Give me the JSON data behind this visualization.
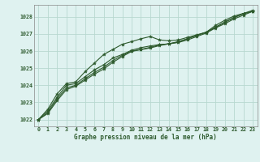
{
  "title": "Graphe pression niveau de la mer (hPa)",
  "background_color": "#dff2f0",
  "plot_bg_color": "#dff2f0",
  "grid_color": "#b8d8d0",
  "line_color": "#2d5a2d",
  "border_color": "#888888",
  "text_color": "#2d5a2d",
  "xlim": [
    -0.5,
    23.5
  ],
  "ylim": [
    1021.6,
    1028.7
  ],
  "yticks": [
    1022,
    1023,
    1024,
    1025,
    1026,
    1027,
    1028
  ],
  "xticks": [
    0,
    1,
    2,
    3,
    4,
    5,
    6,
    7,
    8,
    9,
    10,
    11,
    12,
    13,
    14,
    15,
    16,
    17,
    18,
    19,
    20,
    21,
    22,
    23
  ],
  "series": [
    [
      1022.0,
      1022.6,
      1023.5,
      1024.1,
      1024.2,
      1024.8,
      1025.3,
      1025.8,
      1026.1,
      1026.4,
      1026.55,
      1026.72,
      1026.85,
      1026.65,
      1026.6,
      1026.65,
      1026.8,
      1026.95,
      1027.1,
      1027.5,
      1027.8,
      1028.05,
      1028.2,
      1028.38
    ],
    [
      1022.0,
      1022.5,
      1023.3,
      1024.0,
      1024.1,
      1024.5,
      1024.9,
      1025.2,
      1025.6,
      1025.8,
      1026.05,
      1026.2,
      1026.3,
      1026.38,
      1026.42,
      1026.5,
      1026.65,
      1026.85,
      1027.05,
      1027.35,
      1027.6,
      1027.88,
      1028.1,
      1028.32
    ],
    [
      1022.0,
      1022.4,
      1023.2,
      1023.85,
      1024.0,
      1024.38,
      1024.75,
      1025.05,
      1025.45,
      1025.75,
      1026.0,
      1026.1,
      1026.22,
      1026.36,
      1026.43,
      1026.55,
      1026.72,
      1026.92,
      1027.1,
      1027.38,
      1027.68,
      1027.95,
      1028.18,
      1028.32
    ],
    [
      1022.0,
      1022.35,
      1023.1,
      1023.75,
      1023.95,
      1024.3,
      1024.65,
      1024.95,
      1025.35,
      1025.68,
      1025.98,
      1026.08,
      1026.18,
      1026.32,
      1026.42,
      1026.53,
      1026.72,
      1026.92,
      1027.1,
      1027.4,
      1027.7,
      1027.97,
      1028.2,
      1028.32
    ]
  ]
}
